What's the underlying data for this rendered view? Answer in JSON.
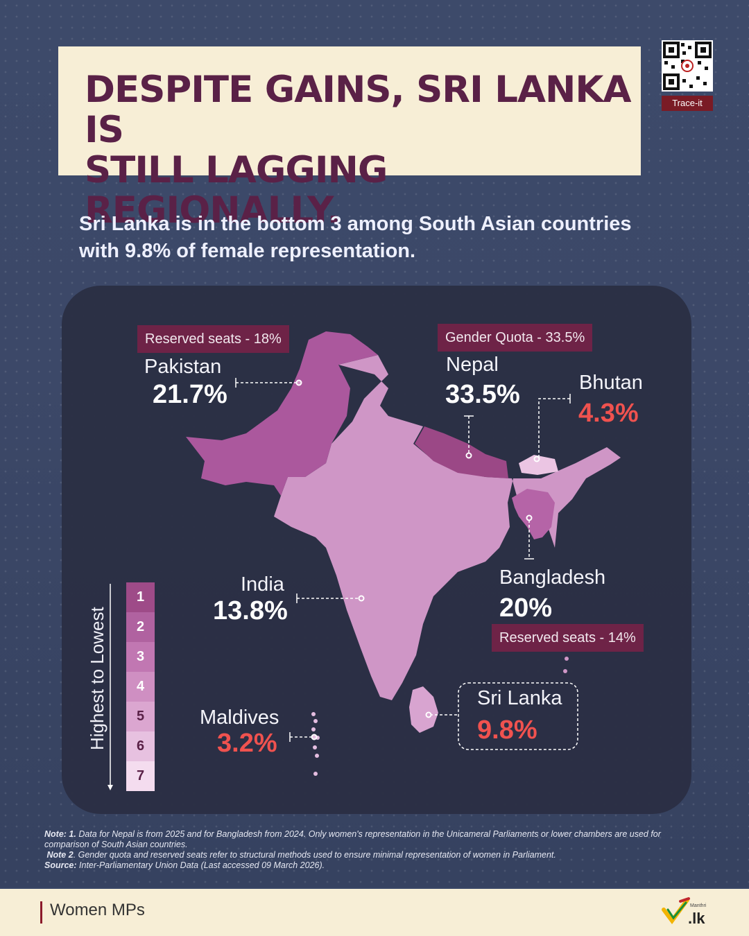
{
  "header": {
    "title_line1": "DESPITE GAINS, SRI LANKA IS",
    "title_line2": "STILL LAGGING REGIONALLY.",
    "qr_label": "Trace-it"
  },
  "subtitle_line1": "Sri Lanka is in the bottom 3 among South Asian countries",
  "subtitle_line2": "with 9.8% of female representation.",
  "countries": [
    {
      "name": "Pakistan",
      "value": "21.7%",
      "percent": 21.7,
      "rank": 2,
      "note": "Reserved seats - 18%"
    },
    {
      "name": "Nepal",
      "value": "33.5%",
      "percent": 33.5,
      "rank": 1,
      "note": "Gender Quota - 33.5%"
    },
    {
      "name": "Bhutan",
      "value": "4.3%",
      "percent": 4.3,
      "rank": 6,
      "note": ""
    },
    {
      "name": "India",
      "value": "13.8%",
      "percent": 13.8,
      "rank": 4,
      "note": ""
    },
    {
      "name": "Bangladesh",
      "value": "20%",
      "percent": 20,
      "rank": 3,
      "note": "Reserved seats - 14%"
    },
    {
      "name": "Sri Lanka",
      "value": "9.8%",
      "percent": 9.8,
      "rank": 5,
      "note": ""
    },
    {
      "name": "Maldives",
      "value": "3.2%",
      "percent": 3.2,
      "rank": 7,
      "note": ""
    }
  ],
  "legend": {
    "title": "Highest to Lowest",
    "ranks": [
      "1",
      "2",
      "3",
      "4",
      "5",
      "6",
      "7"
    ],
    "colors": [
      "#9e4b88",
      "#b062a0",
      "#c177b2",
      "#cf8fc2",
      "#dba6d0",
      "#e7c1e0",
      "#f4dcef"
    ]
  },
  "colors": {
    "title": "#5a2147",
    "highlight_red": "#f0524f",
    "badge": "#6e2347"
  },
  "notes": {
    "note1_label": "Note: 1.",
    "note1_text": " Data for Nepal is from 2025 and for Bangladesh from 2024. Only women's representation in the Unicameral Parliaments or lower chambers are used for comparison of South Asian countries.",
    "note2_label": "Note 2",
    "note2_text": ". Gender quota and reserved seats refer to structural methods used to ensure minimal representation of women in Parliament.",
    "source_label": "Source:",
    "source_text": " Inter-Parliamentary Union Data (Last accessed 09 March 2026)."
  },
  "footer": {
    "label": "Women MPs",
    "logo_small": "Manthri",
    "logo_text": ".lk"
  }
}
